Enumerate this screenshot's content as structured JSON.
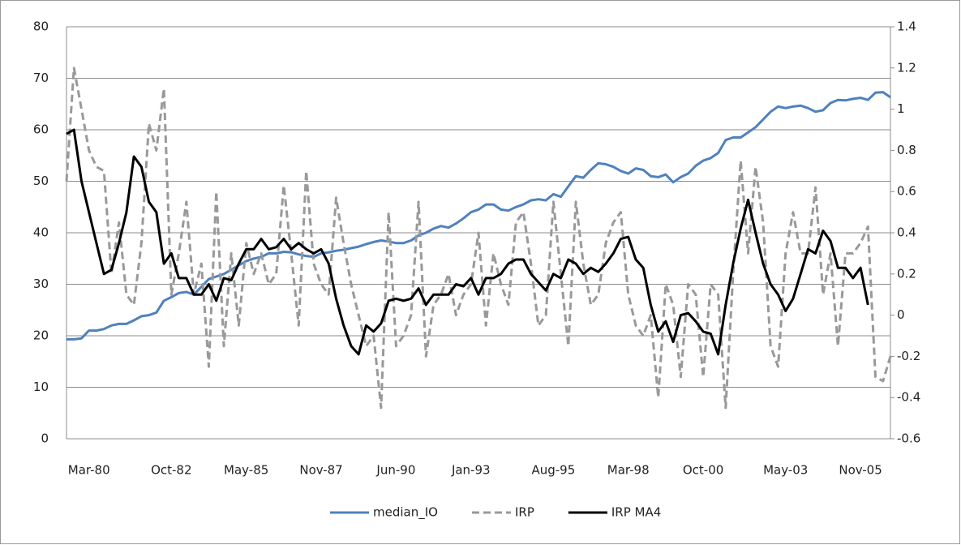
{
  "chart_data": {
    "type": "line",
    "categories": [
      null,
      null,
      null,
      "Mar-80",
      null,
      null,
      null,
      null,
      null,
      null,
      null,
      null,
      null,
      null,
      "Oct-82",
      null,
      null,
      null,
      null,
      null,
      null,
      null,
      null,
      null,
      "May-85",
      null,
      null,
      null,
      null,
      null,
      null,
      null,
      null,
      null,
      "Nov-87",
      null,
      null,
      null,
      null,
      null,
      null,
      null,
      null,
      null,
      "Jun-90",
      null,
      null,
      null,
      null,
      null,
      null,
      null,
      null,
      null,
      "Jan-93",
      null,
      null,
      null,
      null,
      null,
      null,
      null,
      null,
      null,
      null,
      "Aug-95",
      null,
      null,
      null,
      null,
      null,
      null,
      null,
      null,
      null,
      "Mar-98",
      null,
      null,
      null,
      null,
      null,
      null,
      null,
      null,
      null,
      "Oct-00",
      null,
      null,
      null,
      null,
      null,
      null,
      null,
      null,
      null,
      null,
      "May-03",
      null,
      null,
      null,
      null,
      null,
      null,
      null,
      null,
      null,
      "Nov-05",
      null,
      null,
      null,
      null
    ],
    "series": [
      {
        "name": "median_IO",
        "color": "#4f81bd",
        "style": "solid",
        "axis": "y",
        "values": [
          19.3,
          19.3,
          19.5,
          21,
          21,
          21.3,
          22,
          22.3,
          22.3,
          23,
          23.8,
          24,
          24.5,
          26.8,
          27.5,
          28.3,
          28.5,
          28,
          29.5,
          31,
          31.5,
          32,
          32.8,
          33.7,
          34.5,
          35,
          35.3,
          36,
          36,
          36.3,
          36.2,
          35.8,
          35.5,
          35.3,
          36,
          36.2,
          36.5,
          36.7,
          37,
          37.3,
          37.8,
          38.2,
          38.5,
          38.3,
          38,
          38,
          38.5,
          39.5,
          40,
          40.8,
          41.3,
          41,
          41.8,
          42.8,
          44,
          44.5,
          45.5,
          45.5,
          44.5,
          44.3,
          45,
          45.5,
          46.3,
          46.5,
          46.3,
          47.5,
          47,
          49,
          51,
          50.7,
          52.2,
          53.5,
          53.3,
          52.8,
          52,
          51.5,
          52.5,
          52.2,
          51,
          50.8,
          51.3,
          49.8,
          50.8,
          51.5,
          53,
          54,
          54.5,
          55.5,
          58,
          58.5,
          58.5,
          59.5,
          60.5,
          62,
          63.5,
          64.5,
          64.2,
          64.5,
          64.7,
          64.2,
          63.5,
          63.8,
          65.2,
          65.8,
          65.7,
          66,
          66.2,
          65.8,
          67.2,
          67.3,
          66.3
        ]
      },
      {
        "name": "IRP",
        "color": "#999999",
        "style": "dashed",
        "axis": "y2",
        "values": [
          0.65,
          1.2,
          1.0,
          0.8,
          0.72,
          0.7,
          0.2,
          0.45,
          0.1,
          0.05,
          0.35,
          0.93,
          0.8,
          1.1,
          0.1,
          0.3,
          0.55,
          0.1,
          0.25,
          -0.25,
          0.6,
          -0.15,
          0.3,
          -0.05,
          0.35,
          0.2,
          0.3,
          0.15,
          0.2,
          0.63,
          0.3,
          -0.05,
          0.7,
          0.25,
          0.15,
          0.1,
          0.57,
          0.35,
          0.15,
          0.0,
          -0.15,
          -0.1,
          -0.45,
          0.5,
          -0.15,
          -0.1,
          0.0,
          0.55,
          -0.2,
          0.05,
          0.1,
          0.2,
          0.0,
          0.1,
          0.15,
          0.4,
          -0.05,
          0.3,
          0.15,
          0.05,
          0.45,
          0.5,
          0.25,
          -0.05,
          0.0,
          0.55,
          0.2,
          -0.15,
          0.55,
          0.25,
          0.05,
          0.1,
          0.35,
          0.45,
          0.5,
          0.1,
          -0.05,
          -0.1,
          0.0,
          -0.4,
          0.15,
          0.05,
          -0.3,
          0.15,
          0.1,
          -0.3,
          0.15,
          0.1,
          -0.45,
          0.2,
          0.75,
          0.3,
          0.72,
          0.45,
          -0.15,
          -0.25,
          0.3,
          0.5,
          0.3,
          0.3,
          0.62,
          0.1,
          0.3,
          -0.15,
          0.3,
          0.3,
          0.35,
          0.43,
          -0.3,
          -0.32,
          -0.2
        ]
      },
      {
        "name": "IRP MA4",
        "color": "#000000",
        "style": "solid",
        "axis": "y2",
        "values": [
          0.88,
          0.9,
          0.65,
          0.5,
          0.35,
          0.2,
          0.22,
          0.35,
          0.5,
          0.77,
          0.72,
          0.55,
          0.5,
          0.25,
          0.3,
          0.18,
          0.18,
          0.1,
          0.1,
          0.15,
          0.07,
          0.18,
          0.17,
          0.25,
          0.32,
          0.32,
          0.37,
          0.32,
          0.33,
          0.37,
          0.32,
          0.35,
          0.32,
          0.3,
          0.32,
          0.25,
          0.08,
          -0.05,
          -0.15,
          -0.19,
          -0.05,
          -0.08,
          -0.04,
          0.07,
          0.08,
          0.07,
          0.08,
          0.13,
          0.05,
          0.1,
          0.1,
          0.1,
          0.15,
          0.14,
          0.18,
          0.1,
          0.18,
          0.18,
          0.2,
          0.25,
          0.27,
          0.27,
          0.2,
          0.16,
          0.12,
          0.2,
          0.18,
          0.27,
          0.25,
          0.2,
          0.23,
          0.21,
          0.25,
          0.3,
          0.37,
          0.38,
          0.27,
          0.23,
          0.05,
          -0.08,
          -0.03,
          -0.13,
          0.0,
          0.01,
          -0.03,
          -0.08,
          -0.09,
          -0.19,
          0.05,
          0.25,
          0.42,
          0.56,
          0.4,
          0.25,
          0.15,
          0.1,
          0.02,
          0.08,
          0.2,
          0.32,
          0.3,
          0.41,
          0.36,
          0.23,
          0.23,
          0.18,
          0.23,
          0.05,
          null,
          null,
          null
        ]
      }
    ],
    "ylim": [
      0,
      80
    ],
    "yticks": [
      0,
      10,
      20,
      30,
      40,
      50,
      60,
      70,
      80
    ],
    "y2lim": [
      -0.6,
      1.4
    ],
    "y2ticks": [
      -0.6,
      -0.4,
      -0.2,
      0,
      0.2,
      0.4,
      0.6,
      0.8,
      1,
      1.2,
      1.4
    ],
    "grid": true,
    "legend": "bottom"
  }
}
